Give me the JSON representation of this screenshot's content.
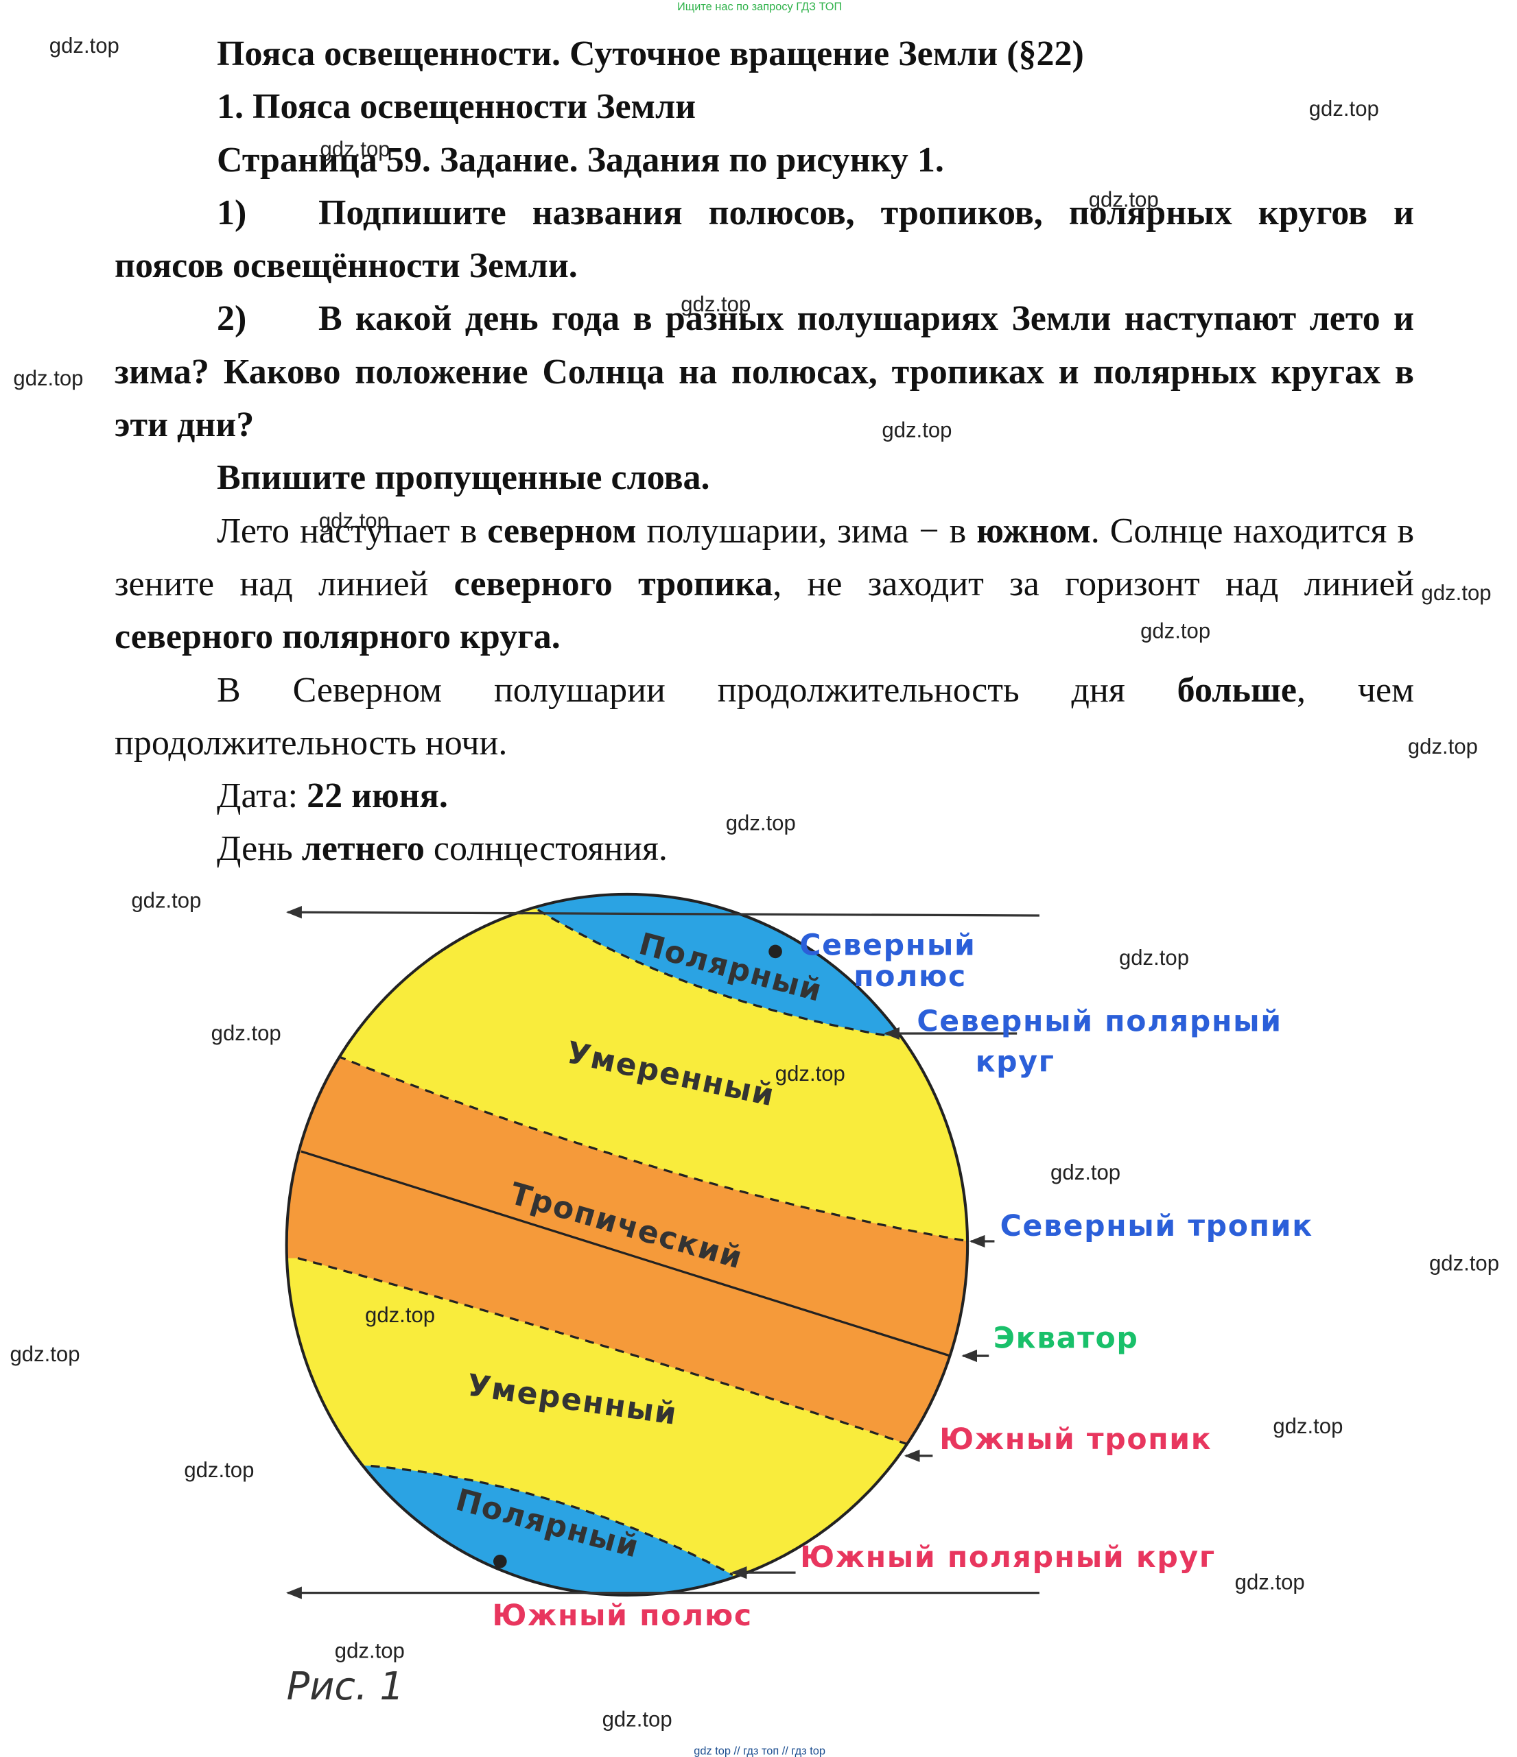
{
  "top_banner": "Ищите нас по запросу ГДЗ ТОП",
  "header": {
    "title": "Пояса освещенности. Суточное вращение Земли (§22)",
    "section": "1. Пояса освещенности Земли",
    "page": "Страница 59. Задание. Задания по рисунку 1."
  },
  "tasks": [
    {
      "number": "1)",
      "text": "Подпишите названия полюсов, тропиков, полярных кругов и поясов освещённости Земли."
    },
    {
      "number": "2)",
      "text": "В какой день года в разных полушариях Земли наступают лето и зима? Каково положение Солнца на полюсах, тропиках и полярных кругах в эти дни?"
    }
  ],
  "instruction": "Впишите пропущенные слова.",
  "answer": [
    [
      "Лето наступает в ",
      "северном",
      " полушарии, зима − в ",
      "южном",
      ". Солнце находится в зените над линией ",
      "северного тропика",
      ", не заходит за горизонт над линией ",
      "северного полярного круга."
    ],
    [
      "В Северном полушарии продолжительность дня ",
      "больше",
      ", чем продолжительность ночи."
    ],
    [
      "Дата: ",
      "22 июня."
    ],
    [
      "День ",
      "летнего",
      " солнцестояния."
    ]
  ],
  "figure": {
    "zones": [
      "Полярный",
      "Умеренный",
      "Тропический",
      "Умеренный",
      "Полярный"
    ],
    "north_pole": [
      "Северный",
      "полюс"
    ],
    "north_polar_circle": [
      "Северный полярный",
      "круг"
    ],
    "north_tropic": "Северный тропик",
    "equator": "Экватор",
    "south_tropic": "Южный тропик",
    "south_polar_circle": "Южный полярный круг",
    "south_pole": "Южный полюс",
    "caption": "Рис. 1"
  },
  "watermarks": [
    "gdz.top",
    "gdz.top",
    "gdz.top",
    "gdz.top",
    "gdz.top",
    "gdz.top",
    "gdz.top",
    "gdz.top",
    "gdz.top",
    "gdz.top",
    "gdz.top",
    "gdz.top",
    "gdz.top",
    "gdz.top",
    "gdz.top",
    "gdz.top",
    "gdz.top",
    "gdz.top",
    "gdz.top",
    "gdz.top",
    "gdz.top",
    "gdz.top",
    "gdz.top",
    "gdz.top",
    "gdz.top"
  ],
  "footer": "gdz top // гдз топ // гдз top"
}
